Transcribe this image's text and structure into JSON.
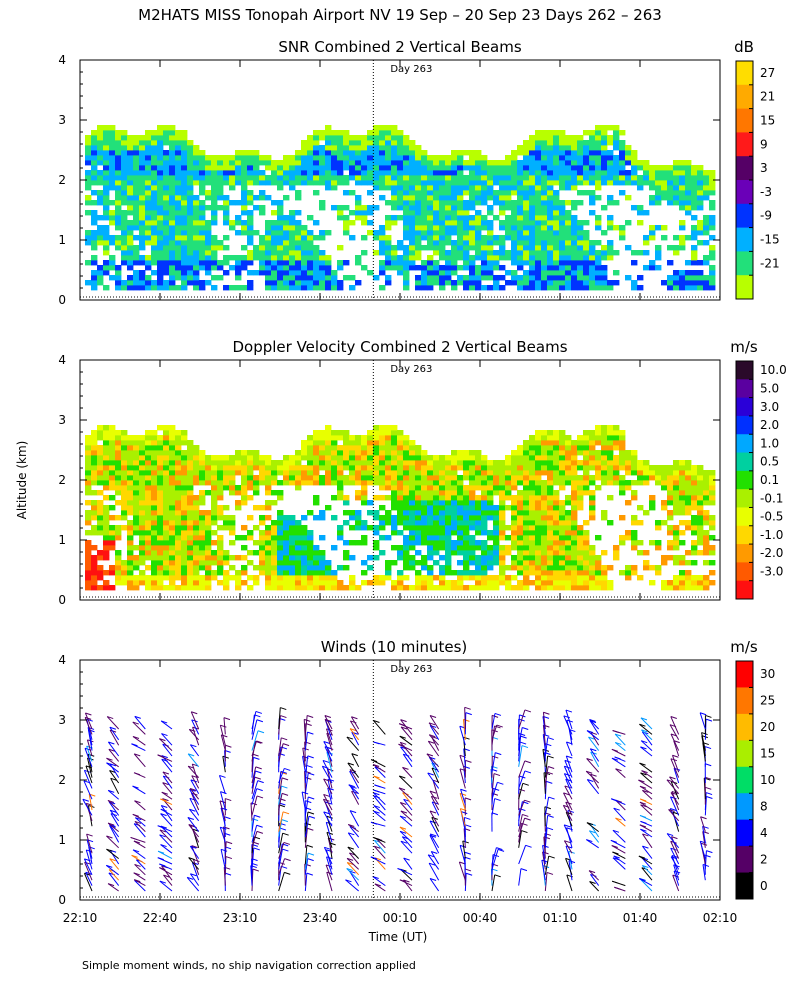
{
  "figure_title": "M2HATS MISS Tonopah Airport NV  19 Sep – 20 Sep 23 Days 262 – 263",
  "footnote": "Simple moment winds, no ship navigation correction applied",
  "shared": {
    "y_label": "Altitude (km)",
    "x_label": "Time (UT)",
    "x_ticks": [
      "22:10",
      "22:40",
      "23:10",
      "23:40",
      "00:10",
      "00:40",
      "01:10",
      "01:40",
      "02:10"
    ],
    "y_ticks": [
      0,
      1,
      2,
      3,
      4
    ],
    "day_marker_label": "Day 263",
    "day_marker_time": "00:00"
  },
  "chart_data": [
    {
      "type": "heatmap",
      "title": "SNR Combined 2 Vertical Beams",
      "units": "dB",
      "xlim": [
        "22:10",
        "02:10"
      ],
      "ylim": [
        0,
        4
      ],
      "colorbar_ticks": [
        "27",
        "21",
        "15",
        "9",
        "3",
        "-3",
        "-9",
        "-15",
        "-21"
      ],
      "colorbar_colors": [
        "#ffdd00",
        "#ffaa00",
        "#ff7700",
        "#ff1a1a",
        "#550066",
        "#6a00b8",
        "#0033ff",
        "#00b0ff",
        "#22e07a",
        "#b8ff00"
      ],
      "cloud_top_km": 2.6,
      "strong_layer_km": [
        2.0,
        2.5
      ]
    },
    {
      "type": "heatmap",
      "title": "Doppler Velocity Combined 2 Vertical Beams",
      "units": "m/s",
      "xlim": [
        "22:10",
        "02:10"
      ],
      "ylim": [
        0,
        4
      ],
      "colorbar_ticks": [
        "10.0",
        "5.0",
        "3.0",
        "2.0",
        "1.0",
        "0.5",
        "0.1",
        "-0.1",
        "-0.5",
        "-1.0",
        "-2.0",
        "-3.0"
      ],
      "colorbar_colors": [
        "#2a0a2a",
        "#5a00a0",
        "#2a00d8",
        "#0030ff",
        "#00a8ff",
        "#00d0a0",
        "#22e000",
        "#aaf000",
        "#e8ff00",
        "#ffd800",
        "#ff9a00",
        "#ff5a00",
        "#ff1010"
      ],
      "cloud_top_km": 2.6
    },
    {
      "type": "scatter",
      "title": "Winds (10 minutes)",
      "units": "m/s",
      "xlim": [
        "22:10",
        "02:10"
      ],
      "ylim": [
        0,
        4
      ],
      "colorbar_ticks": [
        "30",
        "25",
        "20",
        "15",
        "10",
        "8",
        "4",
        "2",
        "0"
      ],
      "colorbar_colors": [
        "#ff0000",
        "#ff7700",
        "#ffbb00",
        "#aaee00",
        "#00dd66",
        "#0099ff",
        "#0000ff",
        "#550066",
        "#000000"
      ],
      "wind_profile_times": [
        "22:10",
        "22:20",
        "22:30",
        "22:40",
        "22:50",
        "23:00",
        "23:10",
        "23:20",
        "23:30",
        "23:40",
        "23:50",
        "00:00",
        "00:10",
        "00:20",
        "00:30",
        "00:40",
        "00:50",
        "01:00",
        "01:10",
        "01:20",
        "01:30",
        "01:40",
        "01:50",
        "02:00"
      ]
    }
  ]
}
